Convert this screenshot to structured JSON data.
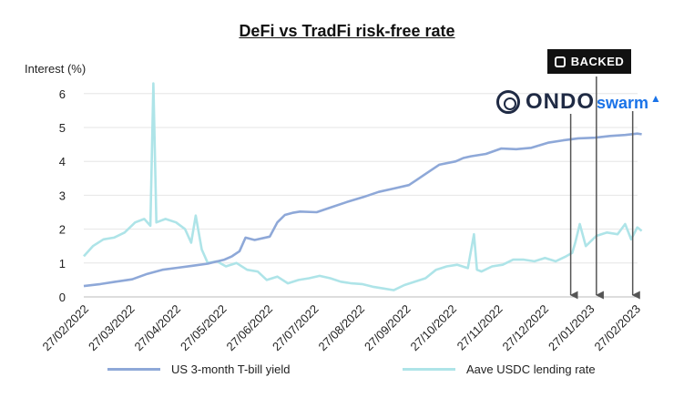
{
  "chart_data": {
    "type": "line",
    "title": "DeFi vs TradFi risk-free rate",
    "ylabel": "Interest (%)",
    "xlabel": "",
    "ylim": [
      0,
      7
    ],
    "yticks": [
      "0",
      "1",
      "2",
      "3",
      "4",
      "5",
      "6"
    ],
    "xticks": [
      "27/02/2022",
      "27/03/2022",
      "27/04/2022",
      "27/05/2022",
      "27/06/2022",
      "27/07/2022",
      "27/08/2022",
      "27/09/2022",
      "27/10/2022",
      "27/11/2022",
      "27/12/2022",
      "27/01/2023",
      "27/02/2023"
    ],
    "grid": "horizontal",
    "legend_position": "bottom",
    "series": [
      {
        "name": "US 3-month T-bill yield",
        "color": "#8ea8d8",
        "x": [
          "2022-02-27",
          "2022-03-10",
          "2022-03-20",
          "2022-03-31",
          "2022-04-10",
          "2022-04-20",
          "2022-04-30",
          "2022-05-10",
          "2022-05-20",
          "2022-05-31",
          "2022-06-05",
          "2022-06-10",
          "2022-06-14",
          "2022-06-20",
          "2022-06-30",
          "2022-07-05",
          "2022-07-10",
          "2022-07-15",
          "2022-07-20",
          "2022-07-31",
          "2022-08-10",
          "2022-08-20",
          "2022-08-31",
          "2022-09-10",
          "2022-09-20",
          "2022-09-30",
          "2022-10-05",
          "2022-10-10",
          "2022-10-20",
          "2022-10-31",
          "2022-11-05",
          "2022-11-10",
          "2022-11-20",
          "2022-11-30",
          "2022-12-10",
          "2022-12-20",
          "2022-12-31",
          "2023-01-10",
          "2023-01-20",
          "2023-01-31",
          "2023-02-10",
          "2023-02-20",
          "2023-02-28",
          "2023-03-03"
        ],
        "values": [
          0.32,
          0.38,
          0.45,
          0.52,
          0.68,
          0.8,
          0.86,
          0.92,
          0.98,
          1.1,
          1.2,
          1.35,
          1.75,
          1.68,
          1.78,
          2.2,
          2.42,
          2.48,
          2.52,
          2.5,
          2.65,
          2.8,
          2.95,
          3.1,
          3.2,
          3.3,
          3.45,
          3.6,
          3.9,
          4.0,
          4.1,
          4.15,
          4.22,
          4.38,
          4.36,
          4.4,
          4.55,
          4.62,
          4.68,
          4.7,
          4.75,
          4.78,
          4.82,
          4.8
        ]
      },
      {
        "name": "Aave USDC lending rate",
        "color": "#aee4e8",
        "x": [
          "2022-02-27",
          "2022-03-05",
          "2022-03-12",
          "2022-03-19",
          "2022-03-26",
          "2022-04-02",
          "2022-04-08",
          "2022-04-12",
          "2022-04-14",
          "2022-04-16",
          "2022-04-22",
          "2022-04-29",
          "2022-05-05",
          "2022-05-09",
          "2022-05-12",
          "2022-05-16",
          "2022-05-20",
          "2022-05-26",
          "2022-06-01",
          "2022-06-08",
          "2022-06-15",
          "2022-06-22",
          "2022-06-28",
          "2022-07-05",
          "2022-07-12",
          "2022-07-19",
          "2022-07-26",
          "2022-08-02",
          "2022-08-09",
          "2022-08-16",
          "2022-08-23",
          "2022-08-30",
          "2022-09-06",
          "2022-09-13",
          "2022-09-20",
          "2022-09-27",
          "2022-10-04",
          "2022-10-11",
          "2022-10-18",
          "2022-10-25",
          "2022-11-01",
          "2022-11-08",
          "2022-11-12",
          "2022-11-14",
          "2022-11-17",
          "2022-11-24",
          "2022-12-01",
          "2022-12-08",
          "2022-12-15",
          "2022-12-22",
          "2022-12-29",
          "2023-01-05",
          "2023-01-12",
          "2023-01-16",
          "2023-01-18",
          "2023-01-21",
          "2023-01-25",
          "2023-02-01",
          "2023-02-08",
          "2023-02-15",
          "2023-02-20",
          "2023-02-24",
          "2023-02-28",
          "2023-03-03"
        ],
        "values": [
          1.2,
          1.5,
          1.7,
          1.75,
          1.9,
          2.2,
          2.3,
          2.1,
          6.3,
          2.2,
          2.3,
          2.2,
          2.0,
          1.6,
          2.4,
          1.4,
          1.0,
          1.05,
          0.9,
          1.0,
          0.8,
          0.75,
          0.5,
          0.6,
          0.4,
          0.5,
          0.55,
          0.62,
          0.55,
          0.45,
          0.4,
          0.38,
          0.3,
          0.25,
          0.2,
          0.35,
          0.45,
          0.55,
          0.8,
          0.9,
          0.95,
          0.85,
          1.85,
          0.8,
          0.75,
          0.9,
          0.95,
          1.1,
          1.1,
          1.05,
          1.15,
          1.05,
          1.2,
          1.3,
          1.6,
          2.15,
          1.5,
          1.8,
          1.9,
          1.85,
          2.15,
          1.7,
          2.05,
          1.95
        ]
      }
    ]
  },
  "logos": {
    "backed": "BACKED",
    "ondo": "ONDO",
    "swarm": "swarm",
    "backed_icon": "backed-logo-icon",
    "ondo_icon": "ondo-logo-icon",
    "swarm_icon": "swarm-logo-icon"
  },
  "markers": [
    {
      "date": "2023-01-15",
      "logo": "ondo"
    },
    {
      "date": "2023-02-01",
      "logo": "backed"
    },
    {
      "date": "2023-02-25",
      "logo": "swarm"
    }
  ]
}
